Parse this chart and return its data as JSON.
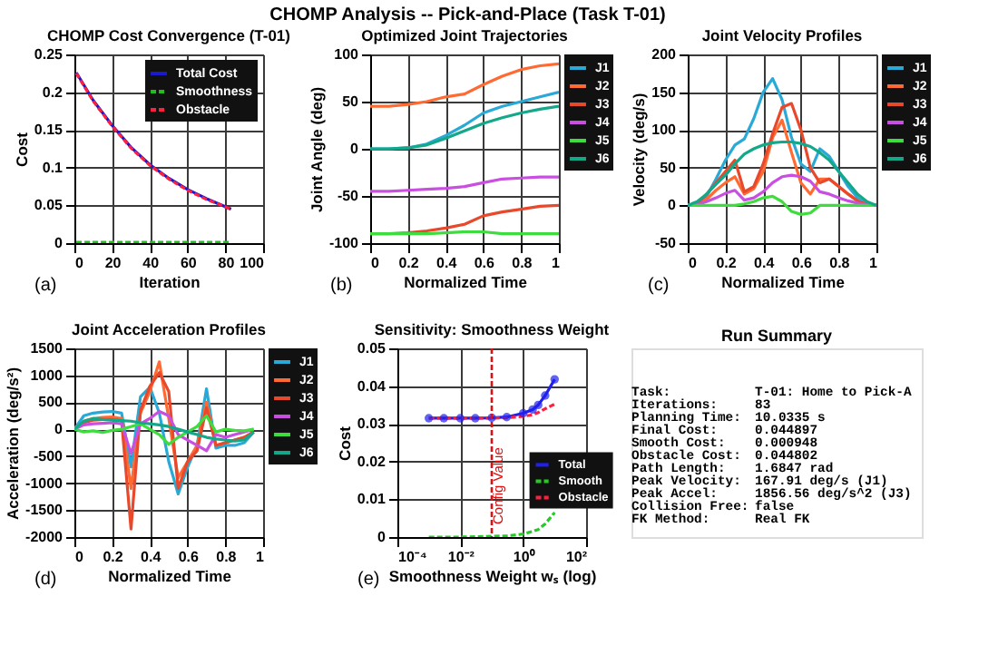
{
  "chart_data": [
    {
      "type": "other",
      "title": "CHOMP Analysis -- Pick-and-Place (Task T-01)"
    },
    {
      "type": "line",
      "title": "CHOMP Cost Convergence (T-01)",
      "xlabel": "Iteration",
      "ylabel": "Cost",
      "annotations": [
        "(a)"
      ],
      "x": [
        1,
        10,
        20,
        30,
        40,
        50,
        60,
        70,
        83
      ],
      "series": [
        {
          "name": "Total Cost",
          "color": "#1a1acc",
          "line_style": "solid",
          "values": [
            0.226,
            0.189,
            0.156,
            0.127,
            0.104,
            0.086,
            0.071,
            0.059,
            0.045
          ]
        },
        {
          "name": "Smoothness",
          "color": "#22bb22",
          "line_style": "dashed",
          "values": [
            0.001,
            0.001,
            0.001,
            0.001,
            0.001,
            0.001,
            0.001,
            0.001,
            0.001
          ]
        },
        {
          "name": "Obstacle",
          "color": "#ff2040",
          "line_style": "dashed",
          "values": [
            0.225,
            0.188,
            0.155,
            0.126,
            0.103,
            0.085,
            0.07,
            0.058,
            0.045
          ]
        }
      ],
      "xlim": [
        0,
        100
      ],
      "xticks": [
        0,
        20,
        40,
        60,
        80,
        100
      ],
      "ylim": [
        0,
        0.25
      ],
      "yticks": [
        0,
        0.05,
        0.1,
        0.15,
        0.2,
        0.25
      ],
      "grid": true,
      "legend": "top right"
    },
    {
      "type": "line",
      "title": "Optimized Joint Trajectories",
      "xlabel": "Normalized Time",
      "ylabel": "Joint Angle (deg)",
      "annotations": [
        "(b)"
      ],
      "x": [
        0,
        0.1,
        0.2,
        0.3,
        0.4,
        0.5,
        0.6,
        0.7,
        0.8,
        0.9,
        1
      ],
      "series": [
        {
          "name": "J1",
          "color": "#2aa9d6",
          "values": [
            0,
            0,
            1,
            5,
            14,
            25,
            38,
            45,
            50,
            55,
            60
          ]
        },
        {
          "name": "J2",
          "color": "#ff6a33",
          "values": [
            45,
            45,
            47,
            50,
            55,
            58,
            68,
            77,
            84,
            88,
            90
          ]
        },
        {
          "name": "J3",
          "color": "#e8482b",
          "values": [
            -90,
            -90,
            -89,
            -87,
            -84,
            -80,
            -71,
            -67,
            -64,
            -61,
            -60
          ]
        },
        {
          "name": "J4",
          "color": "#c84fe0",
          "values": [
            -45,
            -45,
            -44,
            -43,
            -42,
            -40,
            -36,
            -32,
            -31,
            -30,
            -30
          ]
        },
        {
          "name": "J5",
          "color": "#3fdc3f",
          "values": [
            -90,
            -90,
            -90,
            -90,
            -89,
            -88,
            -88,
            -90,
            -90,
            -90,
            -90
          ]
        },
        {
          "name": "J6",
          "color": "#14a88a",
          "values": [
            0,
            0,
            1,
            4,
            11,
            19,
            27,
            33,
            38,
            42,
            45
          ]
        }
      ],
      "xlim": [
        0,
        1
      ],
      "xticks": [
        0,
        0.2,
        0.4,
        0.6,
        0.8,
        1
      ],
      "ylim": [
        -100,
        100
      ],
      "yticks": [
        -100,
        -50,
        0,
        50,
        100
      ],
      "grid": true,
      "legend": "right"
    },
    {
      "type": "line",
      "title": "Joint Velocity Profiles",
      "xlabel": "Normalized Time",
      "ylabel": "Velocity (deg/s)",
      "annotations": [
        "(c)"
      ],
      "x": [
        0,
        0.05,
        0.1,
        0.15,
        0.2,
        0.25,
        0.3,
        0.35,
        0.4,
        0.45,
        0.5,
        0.55,
        0.6,
        0.65,
        0.7,
        0.75,
        0.8,
        0.85,
        0.9,
        0.95,
        1
      ],
      "series": [
        {
          "name": "J1",
          "color": "#2aa9d6",
          "values": [
            0,
            2,
            12,
            35,
            60,
            80,
            88,
            115,
            150,
            168,
            140,
            90,
            55,
            45,
            75,
            65,
            45,
            25,
            10,
            2,
            0
          ]
        },
        {
          "name": "J2",
          "color": "#ff6a33",
          "values": [
            0,
            1,
            8,
            20,
            30,
            38,
            15,
            22,
            45,
            90,
            113,
            70,
            30,
            15,
            35,
            35,
            25,
            15,
            6,
            1,
            0
          ]
        },
        {
          "name": "J3",
          "color": "#e8482b",
          "values": [
            0,
            2,
            15,
            30,
            45,
            60,
            18,
            25,
            55,
            95,
            130,
            135,
            100,
            50,
            30,
            35,
            25,
            15,
            6,
            1,
            0
          ]
        },
        {
          "name": "J4",
          "color": "#c84fe0",
          "values": [
            0,
            1,
            5,
            10,
            16,
            20,
            7,
            10,
            18,
            30,
            38,
            40,
            38,
            32,
            18,
            15,
            10,
            6,
            3,
            1,
            0
          ]
        },
        {
          "name": "J5",
          "color": "#3fdc3f",
          "values": [
            0,
            0,
            0,
            0,
            0,
            0,
            2,
            5,
            10,
            12,
            5,
            -8,
            -12,
            -10,
            0,
            0,
            0,
            0,
            0,
            0,
            0
          ]
        },
        {
          "name": "J6",
          "color": "#14a88a",
          "values": [
            0,
            5,
            15,
            28,
            40,
            55,
            68,
            75,
            80,
            83,
            84,
            84,
            82,
            78,
            70,
            60,
            45,
            30,
            15,
            5,
            0
          ]
        }
      ],
      "xlim": [
        0,
        1
      ],
      "xticks": [
        0,
        0.2,
        0.4,
        0.6,
        0.8,
        1
      ],
      "ylim": [
        -50,
        200
      ],
      "yticks": [
        -50,
        0,
        50,
        100,
        150,
        200
      ],
      "grid": true,
      "legend": "right"
    },
    {
      "type": "line",
      "title": "Joint Acceleration Profiles",
      "xlabel": "Normalized Time",
      "ylabel": "Acceleration (deg/s²)",
      "annotations": [
        "(d)"
      ],
      "x": [
        0,
        0.05,
        0.1,
        0.15,
        0.2,
        0.25,
        0.3,
        0.35,
        0.4,
        0.45,
        0.5,
        0.55,
        0.6,
        0.65,
        0.7,
        0.75,
        0.8,
        0.85,
        0.9,
        0.95
      ],
      "series": [
        {
          "name": "J1",
          "color": "#2aa9d6",
          "values": [
            0,
            250,
            300,
            320,
            330,
            300,
            -700,
            600,
            780,
            300,
            -600,
            -1200,
            -700,
            -300,
            750,
            -350,
            -300,
            -300,
            -250,
            -50
          ]
        },
        {
          "name": "J2",
          "color": "#ff6a33",
          "values": [
            0,
            150,
            200,
            220,
            230,
            200,
            -1100,
            300,
            700,
            1250,
            200,
            -900,
            -600,
            -300,
            500,
            -300,
            -250,
            -200,
            -150,
            -50
          ]
        },
        {
          "name": "J3",
          "color": "#e8482b",
          "values": [
            0,
            120,
            170,
            180,
            180,
            160,
            -1850,
            350,
            800,
            1050,
            700,
            -1100,
            -600,
            -400,
            400,
            -300,
            -250,
            -200,
            -150,
            -50
          ]
        },
        {
          "name": "J4",
          "color": "#c84fe0",
          "values": [
            0,
            80,
            100,
            110,
            120,
            100,
            -450,
            100,
            200,
            330,
            250,
            -100,
            -200,
            -300,
            -400,
            -100,
            -150,
            -100,
            -50,
            0
          ]
        },
        {
          "name": "J5",
          "color": "#3fdc3f",
          "values": [
            0,
            -50,
            -30,
            -60,
            -20,
            0,
            50,
            100,
            0,
            -100,
            -280,
            -150,
            -50,
            50,
            250,
            -50,
            0,
            -20,
            -30,
            0
          ]
        },
        {
          "name": "J6",
          "color": "#14a88a",
          "values": [
            0,
            150,
            200,
            180,
            170,
            160,
            150,
            120,
            100,
            80,
            50,
            0,
            -50,
            -100,
            -150,
            -180,
            -200,
            -220,
            -200,
            -50
          ]
        }
      ],
      "xlim": [
        0,
        1
      ],
      "xticks": [
        0,
        0.2,
        0.4,
        0.6,
        0.8,
        1
      ],
      "ylim": [
        -2000,
        1500
      ],
      "yticks": [
        -2000,
        -1500,
        -1000,
        -500,
        0,
        500,
        1000,
        1500
      ],
      "grid": true,
      "legend": "right"
    },
    {
      "type": "line",
      "title": "Sensitivity: Smoothness Weight",
      "xlabel": "Smoothness Weight wₛ (log)",
      "ylabel": "Cost",
      "annotations": [
        "(e)"
      ],
      "x": [
        0.001,
        0.003,
        0.01,
        0.03,
        0.1,
        0.3,
        1,
        2,
        3,
        5,
        10
      ],
      "series": [
        {
          "name": "Total",
          "color": "#2020ee",
          "line_style": "solid",
          "marker": "circle",
          "values": [
            0.0315,
            0.0315,
            0.0315,
            0.0315,
            0.0316,
            0.0318,
            0.0328,
            0.0338,
            0.035,
            0.0375,
            0.0418
          ]
        },
        {
          "name": "Smooth",
          "color": "#22cc22",
          "line_style": "dashed",
          "values": [
            0,
            0,
            0,
            0.0001,
            0.0002,
            0.0003,
            0.0008,
            0.0015,
            0.002,
            0.0035,
            0.0065
          ]
        },
        {
          "name": "Obstacle",
          "color": "#ff2040",
          "line_style": "dashed",
          "values": [
            0.0315,
            0.0315,
            0.0315,
            0.0315,
            0.0315,
            0.0316,
            0.032,
            0.0324,
            0.033,
            0.034,
            0.0352
          ]
        }
      ],
      "log": "x",
      "xlim": [
        0.0001,
        100
      ],
      "xticks": [
        {
          "value": 0.0001,
          "label": "10⁻⁴"
        },
        {
          "value": 0.01,
          "label": "10⁻²"
        },
        {
          "value": 1,
          "label": "10⁰"
        },
        {
          "value": 100,
          "label": "10²"
        }
      ],
      "ylim": [
        0,
        0.05
      ],
      "yticks": [
        0,
        0.01,
        0.02,
        0.03,
        0.04,
        0.05
      ],
      "ref_lines": [
        {
          "axis": "x",
          "value": 0.1,
          "label": "Config Value",
          "color": "#dd1111",
          "line_style": "dashed"
        }
      ],
      "grid": true,
      "legend": "bottom right"
    },
    {
      "type": "other",
      "title": "Run Summary",
      "annotations": [
        "Task:",
        "T-01: Home to Pick-A",
        "Iterations:",
        "83",
        "Planning Time:",
        "10.0335 s",
        "Final Cost:",
        "0.044897",
        "Smooth Cost:",
        "0.000948",
        "Obstacle Cost:",
        "0.044802",
        "Path Length:",
        "1.6847 rad",
        "Peak Velocity:",
        "167.91 deg/s (J1)",
        "Peak Accel:",
        "1856.56 deg/s^2 (J3)",
        "Collision Free:",
        "false",
        "FK Method:",
        "Real FK"
      ]
    }
  ]
}
